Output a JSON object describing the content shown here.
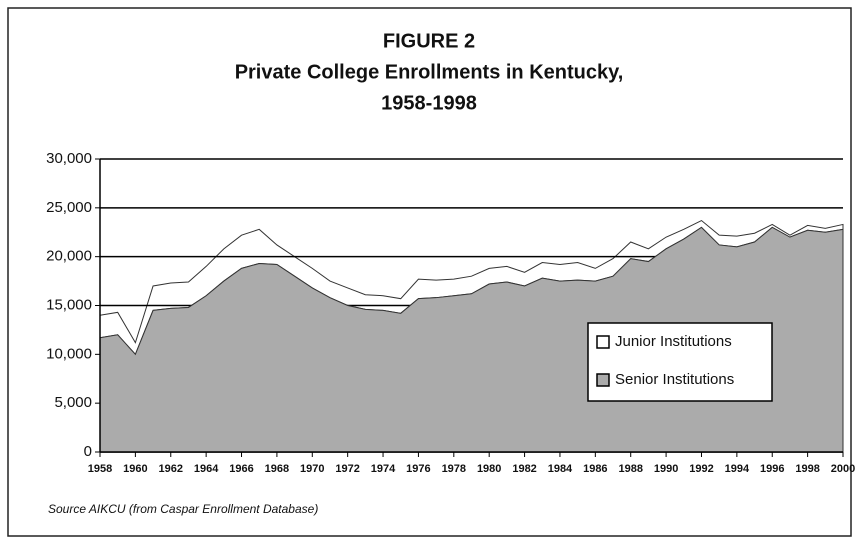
{
  "chart_data": {
    "type": "stacked_area",
    "title": "FIGURE 2",
    "subtitle": [
      "Private College Enrollments in Kentucky,",
      "1958-1998"
    ],
    "source": "Source AIKCU (from Caspar Enrollment Database)",
    "x": [
      1958,
      1959,
      1960,
      1961,
      1962,
      1963,
      1964,
      1965,
      1966,
      1967,
      1968,
      1969,
      1970,
      1971,
      1972,
      1973,
      1974,
      1975,
      1976,
      1977,
      1978,
      1979,
      1980,
      1981,
      1982,
      1983,
      1984,
      1985,
      1986,
      1987,
      1988,
      1989,
      1990,
      1991,
      1992,
      1993,
      1994,
      1995,
      1996,
      1997,
      1998,
      1999,
      2000
    ],
    "series": [
      {
        "name": "Junior Institutions",
        "color": "#ffffff",
        "values": [
          2300,
          2300,
          1200,
          2500,
          2600,
          2600,
          3000,
          3300,
          3400,
          3500,
          2000,
          2000,
          2000,
          1700,
          1800,
          1500,
          1500,
          1500,
          2000,
          1800,
          1700,
          1800,
          1600,
          1600,
          1400,
          1600,
          1700,
          1800,
          1300,
          1800,
          1700,
          1300,
          1200,
          1000,
          700,
          1000,
          1100,
          900,
          300,
          200,
          500,
          400,
          500
        ]
      },
      {
        "name": "Senior Institutions",
        "color": "#ababab",
        "values": [
          11700,
          12000,
          10000,
          14500,
          14700,
          14800,
          16000,
          17500,
          18800,
          19300,
          19200,
          18000,
          16800,
          15800,
          15000,
          14600,
          14500,
          14200,
          15700,
          15800,
          16000,
          16200,
          17200,
          17400,
          17000,
          17800,
          17500,
          17600,
          17500,
          18000,
          19800,
          19500,
          20800,
          21800,
          23000,
          21200,
          21000,
          21500,
          23000,
          22000,
          22700,
          22500,
          22800
        ]
      }
    ],
    "xlim": [
      1958,
      2000
    ],
    "xticks": [
      1958,
      1960,
      1962,
      1964,
      1966,
      1968,
      1970,
      1972,
      1974,
      1976,
      1978,
      1980,
      1982,
      1984,
      1986,
      1988,
      1990,
      1992,
      1994,
      1996,
      1998,
      2000
    ],
    "ylim": [
      0,
      30000
    ],
    "yticks": [
      0,
      {
        "value": 5000,
        "label": "5,000"
      },
      {
        "value": 10000,
        "label": "10,000"
      },
      {
        "value": 15000,
        "label": "15,000"
      },
      {
        "value": 20000,
        "label": "20,000"
      },
      {
        "value": 25000,
        "label": "25,000"
      },
      {
        "value": 30000,
        "label": "30,000"
      }
    ],
    "grid": true
  }
}
